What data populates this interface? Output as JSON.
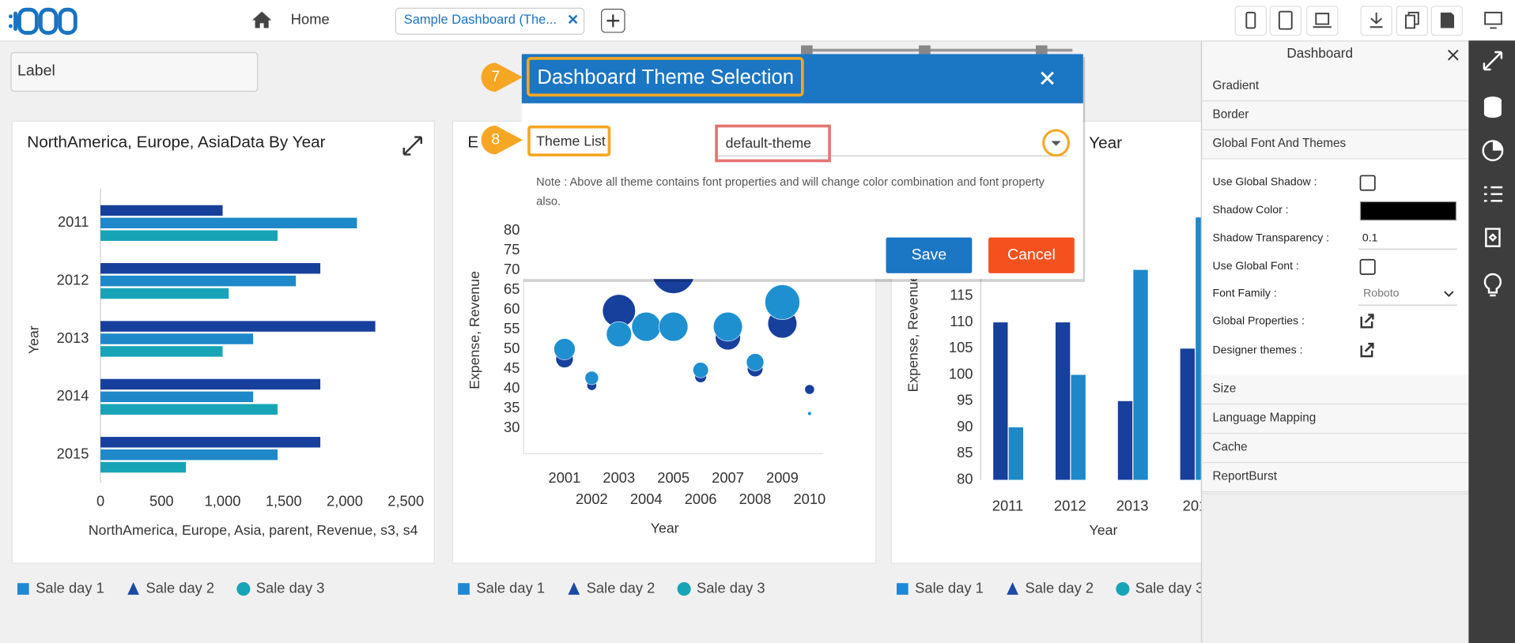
{
  "app_bar": {
    "home": "Home",
    "tab": "Sample Dashboard (The..."
  },
  "label_widget": "Label",
  "charts": [
    {
      "type": "bar",
      "orientation": "horizontal",
      "title": "NorthAmerica, Europe, AsiaData By Year",
      "categories": [
        "2011",
        "2012",
        "2013",
        "2014",
        "2015"
      ],
      "series": [
        {
          "color": "#173f9c",
          "values": [
            1000,
            1800,
            2250,
            1800,
            1800
          ]
        },
        {
          "color": "#1e88c8",
          "values": [
            2100,
            1600,
            1250,
            1250,
            1450
          ]
        },
        {
          "color": "#17a4b6",
          "values": [
            1450,
            1050,
            1000,
            1450,
            700
          ]
        }
      ],
      "xlim": [
        0,
        2500
      ],
      "xticks": [
        0,
        500,
        {
          "value": 1000,
          "label": "1,000"
        },
        {
          "value": 1500,
          "label": "1,500"
        },
        {
          "value": 2000,
          "label": "2,000"
        },
        {
          "value": 2500,
          "label": "2,500"
        }
      ],
      "xlabel": "NorthAmerica, Europe, Asia, parent, Revenue, s3, s4",
      "ylabel": "Year",
      "legend": [
        {
          "name": "Sale day 1",
          "color": "#1e88d4",
          "shape": "square"
        },
        {
          "name": "Sale day 2",
          "color": "#1a4aa6",
          "shape": "triangle"
        },
        {
          "name": "Sale day 3",
          "color": "#17a4b6",
          "shape": "circle"
        }
      ]
    },
    {
      "type": "bubble",
      "title": "E",
      "x": [
        2001,
        2002,
        2003,
        2004,
        2005,
        2006,
        2007,
        2008,
        2009,
        2010
      ],
      "series": [
        {
          "color": "#173f9c",
          "values": [
            47.5,
            40.8,
            59.7,
            null,
            69.5,
            43,
            53,
            45,
            56.5,
            39.8
          ],
          "sizes": [
            9,
            5,
            17,
            null,
            22,
            6,
            13,
            8,
            15,
            5
          ]
        },
        {
          "color": "#1e90d0",
          "values": [
            50,
            42.7,
            53.8,
            55.7,
            55.7,
            44.7,
            55.7,
            46.7,
            61.9,
            33.7
          ],
          "sizes": [
            11,
            7,
            13,
            15,
            15,
            8,
            15,
            9,
            18,
            2
          ]
        }
      ],
      "xlim": [
        1999.5,
        2010.5
      ],
      "ylim": [
        23.5,
        85
      ],
      "xticks": [
        2001,
        2002,
        2003,
        2004,
        2005,
        2006,
        2007,
        2008,
        2009,
        2010
      ],
      "yticks": [
        30,
        35,
        40,
        45,
        50,
        55,
        60,
        65,
        70,
        75,
        80
      ],
      "xlabel": "Year",
      "ylabel": "Expense, Revenue",
      "legend": [
        {
          "name": "Sale day 1",
          "color": "#1e88d4",
          "shape": "square"
        },
        {
          "name": "Sale day 2",
          "color": "#1a4aa6",
          "shape": "triangle"
        },
        {
          "name": "Sale day 3",
          "color": "#17a4b6",
          "shape": "circle"
        }
      ]
    },
    {
      "type": "bar",
      "orientation": "vertical",
      "title": "Year",
      "categories": [
        "2011",
        "2012",
        "2013",
        "201"
      ],
      "series": [
        {
          "color": "#173f9c",
          "values": [
            110,
            110,
            95,
            105
          ]
        },
        {
          "color": "#1e88c8",
          "values": [
            90,
            100,
            120,
            130
          ]
        }
      ],
      "ylim": [
        80,
        135
      ],
      "yticks": [
        80,
        85,
        90,
        95,
        100,
        105,
        110,
        115
      ],
      "xlabel": "Year",
      "ylabel": "Expense, Revenue",
      "legend": [
        {
          "name": "Sale day 1",
          "color": "#1e88d4",
          "shape": "square"
        },
        {
          "name": "Sale day 2",
          "color": "#1a4aa6",
          "shape": "triangle"
        },
        {
          "name": "Sale day 3",
          "color": "#17a4b6",
          "shape": "circle"
        }
      ]
    }
  ],
  "settings_panel": {
    "title": "Dashboard",
    "sections_top": [
      "Gradient",
      "Border",
      "Global Font And Themes"
    ],
    "fields": [
      {
        "label": "Use Global Shadow :",
        "kind": "checkbox"
      },
      {
        "label": "Shadow Color :",
        "kind": "color",
        "color": "#000000"
      },
      {
        "label": "Shadow Transparency :",
        "kind": "input",
        "value": "0.1"
      },
      {
        "label": "Use Global Font :",
        "kind": "checkbox"
      },
      {
        "label": "Font Family :",
        "kind": "select",
        "value": "Roboto"
      },
      {
        "label": "Global Properties :",
        "kind": "link"
      },
      {
        "label": "Designer themes :",
        "kind": "link"
      }
    ],
    "sections_bottom": [
      "Size",
      "Language Mapping",
      "Cache",
      "ReportBurst"
    ]
  },
  "dialog": {
    "title": "Dashboard Theme Selection",
    "title_step": "7",
    "field_label": "Theme List",
    "field_step": "8",
    "selected_theme": "default-theme",
    "note_lines": [
      "Note : Above all theme contains font properties and will change color combination and font property",
      "also."
    ],
    "save": "Save",
    "cancel": "Cancel"
  }
}
